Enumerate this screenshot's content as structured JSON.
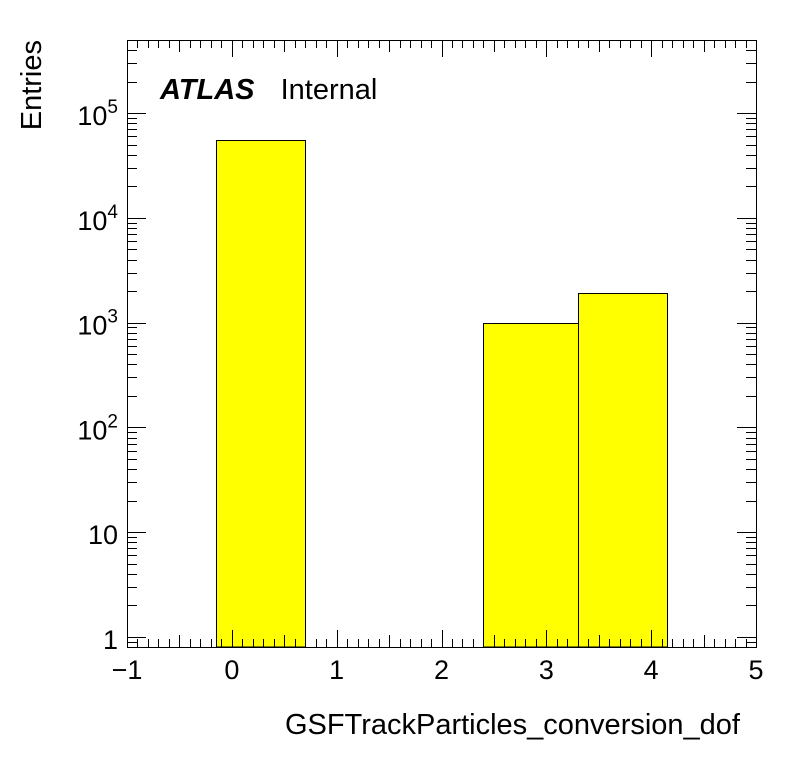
{
  "chart_data": {
    "type": "bar",
    "style": "histogram",
    "xlabel": "GSFTrackParticles_conversion_dof",
    "ylabel": "Entries",
    "annotation": {
      "bold": "ATLAS",
      "normal": "Internal"
    },
    "xlim": [
      -1,
      5
    ],
    "ylim": [
      0.8,
      500000
    ],
    "yscale": "log",
    "fill_color": "#ffff00",
    "line_color": "#000000",
    "grid": false,
    "x_ticks": [
      {
        "value": -1,
        "label": "−1"
      },
      {
        "value": 0,
        "label": "0"
      },
      {
        "value": 1,
        "label": "1"
      },
      {
        "value": 2,
        "label": "2"
      },
      {
        "value": 3,
        "label": "3"
      },
      {
        "value": 4,
        "label": "4"
      },
      {
        "value": 5,
        "label": "5"
      }
    ],
    "y_ticks": [
      {
        "value": 1,
        "base": "1",
        "exp": ""
      },
      {
        "value": 10,
        "base": "10",
        "exp": ""
      },
      {
        "value": 100,
        "base": "10",
        "exp": "2"
      },
      {
        "value": 1000,
        "base": "10",
        "exp": "3"
      },
      {
        "value": 10000,
        "base": "10",
        "exp": "4"
      },
      {
        "value": 100000,
        "base": "10",
        "exp": "5"
      }
    ],
    "bins": [
      {
        "x_low": -0.15,
        "x_high": 0.7,
        "value": 55000
      },
      {
        "x_low": 2.4,
        "x_high": 3.3,
        "value": 1000
      },
      {
        "x_low": 3.3,
        "x_high": 4.15,
        "value": 1900
      }
    ]
  }
}
